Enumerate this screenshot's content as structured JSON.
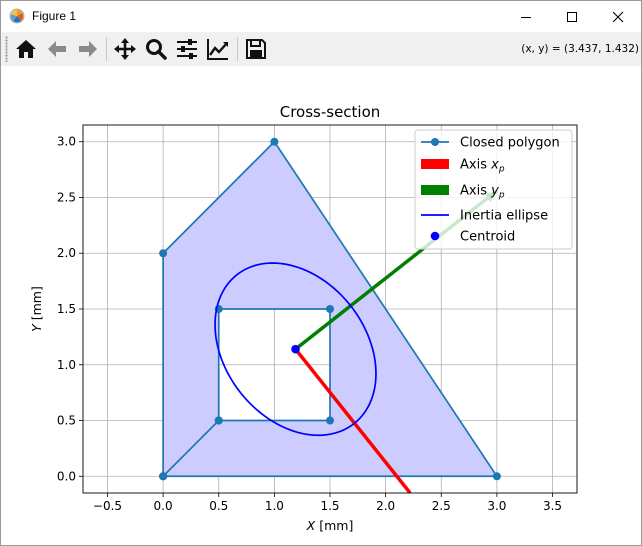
{
  "window": {
    "title": "Figure 1",
    "controls": {
      "minimize": "minimize-icon",
      "maximize": "maximize-icon",
      "close": "close-icon"
    }
  },
  "toolbar": {
    "tools": [
      {
        "name": "home-button",
        "icon": "home-icon"
      },
      {
        "name": "back-button",
        "icon": "arrow-left-icon"
      },
      {
        "name": "forward-button",
        "icon": "arrow-right-icon"
      },
      {
        "name": "pan-button",
        "icon": "move-icon"
      },
      {
        "name": "zoom-button",
        "icon": "magnifier-icon"
      },
      {
        "name": "subplots-button",
        "icon": "sliders-icon"
      },
      {
        "name": "edit-axis-button",
        "icon": "line-chart-icon"
      },
      {
        "name": "save-button",
        "icon": "floppy-disk-icon"
      }
    ],
    "coords": "(x, y) = (3.437, 1.432)"
  },
  "chart_data": {
    "type": "line",
    "title": "Cross-section",
    "xlabel": "X [mm]",
    "ylabel": "Y [mm]",
    "xlim": [
      -0.72,
      3.72
    ],
    "ylim": [
      -0.15,
      3.15
    ],
    "xticks": [
      -0.5,
      0.0,
      0.5,
      1.0,
      1.5,
      2.0,
      2.5,
      3.0,
      3.5
    ],
    "yticks": [
      0.0,
      0.5,
      1.0,
      1.5,
      2.0,
      2.5,
      3.0
    ],
    "grid": true,
    "legend_position": "top-right",
    "fill_color": "#ccccff",
    "outer_polygon": {
      "x": [
        0,
        3,
        1,
        0,
        0
      ],
      "y": [
        0,
        0,
        3,
        2,
        0
      ]
    },
    "hole_polygon": {
      "x": [
        0.5,
        1.5,
        1.5,
        0.5,
        0.5
      ],
      "y": [
        0.5,
        0.5,
        1.5,
        1.5,
        0.5
      ]
    },
    "connector": {
      "x": [
        0,
        0.5
      ],
      "y": [
        0,
        0.5
      ]
    },
    "centroid": {
      "x": 1.19,
      "y": 1.14
    },
    "axis_xp": {
      "x": [
        1.19,
        2.22
      ],
      "y": [
        1.14,
        -0.15
      ],
      "color": "#ff0000"
    },
    "axis_yp": {
      "x": [
        1.19,
        3.0
      ],
      "y": [
        1.14,
        2.56
      ],
      "color": "#008000"
    },
    "ellipse": {
      "cx": 1.19,
      "cy": 1.14,
      "semi_major": 0.85,
      "semi_minor": 0.63,
      "angle_deg": -51.5,
      "color": "#0000ff"
    },
    "polygon_color": "#1f77b4",
    "series": [
      {
        "name": "Closed polygon",
        "style": "line-marker",
        "color": "#1f77b4"
      },
      {
        "name": "Axis x_p",
        "label_main": "Axis ",
        "label_var": "x",
        "label_sub": "p",
        "style": "patch",
        "color": "#ff0000"
      },
      {
        "name": "Axis y_p",
        "label_main": "Axis ",
        "label_var": "y",
        "label_sub": "p",
        "style": "patch",
        "color": "#008000"
      },
      {
        "name": "Inertia ellipse",
        "style": "line",
        "color": "#0000ff"
      },
      {
        "name": "Centroid",
        "style": "marker",
        "color": "#0000ff"
      }
    ]
  }
}
